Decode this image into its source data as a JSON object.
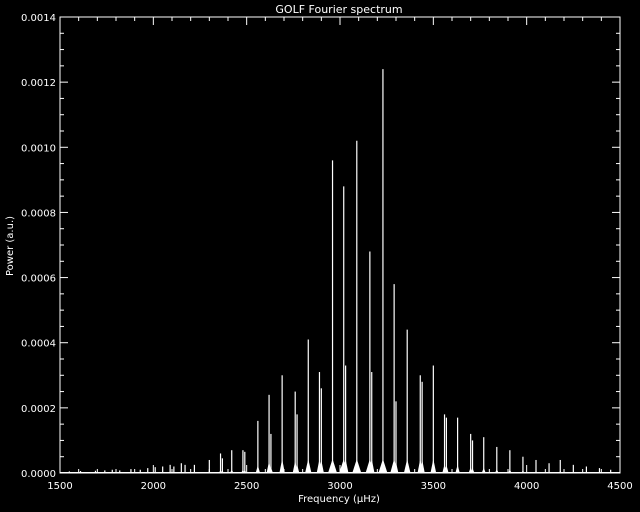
{
  "chart_data": {
    "type": "line",
    "title": "GOLF Fourier spectrum",
    "xlabel": "Frequency (μHz)",
    "ylabel": "Power (a.u.)",
    "xlim": [
      1500,
      4500
    ],
    "ylim": [
      0,
      0.0014
    ],
    "xticks": [
      1500,
      2000,
      2500,
      3000,
      3500,
      4000,
      4500
    ],
    "xtick_labels": [
      "1500",
      "2000",
      "2500",
      "3000",
      "3500",
      "4000",
      "4500"
    ],
    "yticks": [
      0,
      0.0002,
      0.0004,
      0.0006,
      0.0008,
      0.001,
      0.0012,
      0.0014
    ],
    "ytick_labels": [
      "0.0000",
      "0.0002",
      "0.0004",
      "0.0006",
      "0.0008",
      "0.0010",
      "0.0012",
      "0.0014"
    ],
    "grid": false,
    "colors": {
      "background": "#000000",
      "foreground": "#ffffff"
    },
    "series": [
      {
        "x": [
          1550,
          1610,
          1690,
          1740,
          1780,
          1820,
          1880,
          1930,
          1970,
          2010,
          2050,
          2090,
          2110,
          2150,
          2170,
          2220,
          2300,
          2360,
          2370,
          2420,
          2480,
          2490,
          2560,
          2620,
          2630,
          2690,
          2760,
          2770,
          2830,
          2890,
          2900,
          2960,
          3020,
          3030,
          3090,
          3160,
          3170,
          3230,
          3290,
          3300,
          3360,
          3430,
          3440,
          3500,
          3560,
          3570,
          3630,
          3700,
          3710,
          3770,
          3840,
          3910,
          3980,
          4050,
          4120,
          4180,
          4250,
          4320,
          4390,
          4450
        ],
        "y": [
          5e-06,
          6e-06,
          7e-06,
          8e-06,
          1e-05,
          8e-06,
          1.2e-05,
          1e-05,
          1.5e-05,
          1.8e-05,
          2e-05,
          2.5e-05,
          2e-05,
          3e-05,
          2.5e-05,
          2.5e-05,
          4e-05,
          6e-05,
          4.5e-05,
          7e-05,
          7e-05,
          6.5e-05,
          0.00016,
          0.00024,
          0.00012,
          0.0003,
          0.00025,
          0.00018,
          0.00041,
          0.00031,
          0.00026,
          0.00096,
          0.00088,
          0.00033,
          0.00102,
          0.00068,
          0.00031,
          0.00124,
          0.00058,
          0.00022,
          0.00044,
          0.0003,
          0.00028,
          0.00033,
          0.00018,
          0.00017,
          0.00017,
          0.00012,
          0.0001,
          0.00011,
          8e-05,
          7e-05,
          5e-05,
          4e-05,
          3e-05,
          4e-05,
          2.5e-05,
          2e-05,
          1.5e-05,
          1e-05
        ]
      }
    ]
  }
}
